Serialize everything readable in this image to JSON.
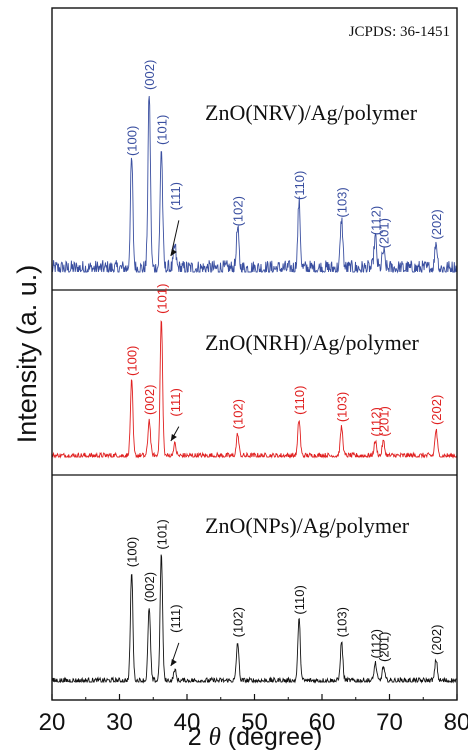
{
  "chart_data": {
    "type": "line",
    "xlabel_prefix": "2",
    "xlabel_symbol": "θ",
    "xlabel_unit": "(degree)",
    "ylabel": "Intensity (a. u.)",
    "xlim": [
      20,
      80
    ],
    "xticks": [
      20,
      30,
      40,
      50,
      60,
      70,
      80
    ],
    "reference": "JCPDS: 36-1451",
    "panels": [
      {
        "name": "ZnO(NRV)/Ag/polymer",
        "color": "#3a4fa0",
        "noise": 0.22,
        "peaks": [
          {
            "x": 31.8,
            "h": 0.5,
            "label": "(100)"
          },
          {
            "x": 34.4,
            "h": 0.8,
            "label": "(002)"
          },
          {
            "x": 36.2,
            "h": 0.55,
            "label": "(101)"
          },
          {
            "x": 38.2,
            "h": 0.1,
            "label": "(111)",
            "arrow": true
          },
          {
            "x": 47.5,
            "h": 0.18,
            "label": "(102)"
          },
          {
            "x": 56.6,
            "h": 0.3,
            "label": "(110)"
          },
          {
            "x": 62.9,
            "h": 0.22,
            "label": "(103)"
          },
          {
            "x": 67.9,
            "h": 0.14,
            "label": "(112)"
          },
          {
            "x": 69.1,
            "h": 0.08,
            "label": "(201)"
          },
          {
            "x": 76.9,
            "h": 0.12,
            "label": "(202)"
          }
        ]
      },
      {
        "name": "ZnO(NRH)/Ag/polymer",
        "color": "#e02020",
        "noise": 0.12,
        "peaks": [
          {
            "x": 31.8,
            "h": 0.52,
            "label": "(100)"
          },
          {
            "x": 34.4,
            "h": 0.25,
            "label": "(002)"
          },
          {
            "x": 36.2,
            "h": 0.95,
            "label": "(101)"
          },
          {
            "x": 38.2,
            "h": 0.08,
            "label": "(111)",
            "arrow": true
          },
          {
            "x": 47.5,
            "h": 0.15,
            "label": "(102)"
          },
          {
            "x": 56.6,
            "h": 0.25,
            "label": "(110)"
          },
          {
            "x": 62.9,
            "h": 0.2,
            "label": "(103)"
          },
          {
            "x": 67.9,
            "h": 0.1,
            "label": "(112)"
          },
          {
            "x": 69.1,
            "h": 0.1,
            "label": "(201)"
          },
          {
            "x": 76.9,
            "h": 0.18,
            "label": "(202)"
          }
        ]
      },
      {
        "name": "ZnO(NPs)/Ag/polymer",
        "color": "#111111",
        "noise": 0.1,
        "peaks": [
          {
            "x": 31.8,
            "h": 0.62,
            "label": "(100)"
          },
          {
            "x": 34.4,
            "h": 0.42,
            "label": "(002)"
          },
          {
            "x": 36.2,
            "h": 0.72,
            "label": "(101)"
          },
          {
            "x": 38.2,
            "h": 0.06,
            "label": "(111)",
            "arrow": true
          },
          {
            "x": 47.5,
            "h": 0.22,
            "label": "(102)"
          },
          {
            "x": 56.6,
            "h": 0.35,
            "label": "(110)"
          },
          {
            "x": 62.9,
            "h": 0.22,
            "label": "(103)"
          },
          {
            "x": 67.9,
            "h": 0.1,
            "label": "(112)"
          },
          {
            "x": 69.1,
            "h": 0.08,
            "label": "(201)"
          },
          {
            "x": 76.9,
            "h": 0.12,
            "label": "(202)"
          }
        ]
      }
    ]
  }
}
